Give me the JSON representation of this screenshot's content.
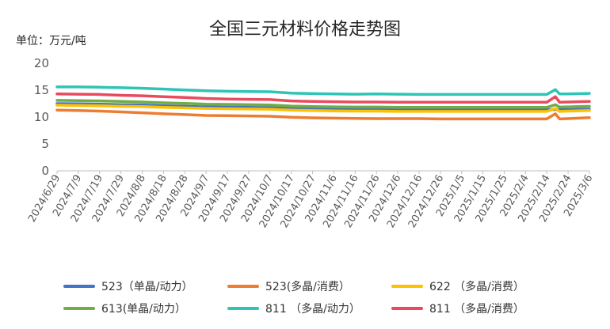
{
  "chart_data": {
    "type": "line",
    "title": "全国三元材料价格走势图",
    "ylabel": "单位：万元/吨",
    "xlabel": "",
    "ylim": [
      0,
      20
    ],
    "yticks": [
      0,
      5,
      10,
      15,
      20
    ],
    "grid": false,
    "legend_position": "bottom",
    "x_tick_labels": [
      "2024/6/29",
      "2024/7/9",
      "2024/7/19",
      "2024/7/29",
      "2024/8/8",
      "2024/8/18",
      "2024/8/28",
      "2024/9/7",
      "2024/9/17",
      "2024/9/27",
      "2024/10/7",
      "2024/10/17",
      "2024/10/27",
      "2024/11/6",
      "2024/11/16",
      "2024/11/26",
      "2024/12/6",
      "2024/12/16",
      "2024/12/26",
      "2025/1/5",
      "2025/1/15",
      "2025/1/25",
      "2025/2/4",
      "2025/2/14",
      "2025/2/24",
      "2025/3/6"
    ],
    "x": [
      "2024/6/29",
      "2024/7/9",
      "2024/7/19",
      "2024/7/29",
      "2024/8/8",
      "2024/8/18",
      "2024/8/28",
      "2024/9/7",
      "2024/9/17",
      "2024/9/27",
      "2024/10/7",
      "2024/10/17",
      "2024/10/27",
      "2024/11/6",
      "2024/11/16",
      "2024/11/26",
      "2024/12/6",
      "2024/12/16",
      "2024/12/26",
      "2025/1/5",
      "2025/1/15",
      "2025/1/25",
      "2025/2/4",
      "2025/2/14",
      "2025/2/18",
      "2025/2/20",
      "2025/2/24",
      "2025/3/6"
    ],
    "series": [
      {
        "name": "523（单晶/动力）",
        "color": "#4472C4",
        "values": [
          12.5,
          12.45,
          12.4,
          12.3,
          12.25,
          12.1,
          12.0,
          11.9,
          11.85,
          11.8,
          11.75,
          11.6,
          11.5,
          11.45,
          11.4,
          11.4,
          11.35,
          11.35,
          11.35,
          11.35,
          11.35,
          11.35,
          11.35,
          11.35,
          11.4,
          11.4,
          11.4,
          11.45
        ]
      },
      {
        "name": "523(多晶/消费）",
        "color": "#ED7D31",
        "values": [
          11.3,
          11.2,
          11.1,
          10.95,
          10.8,
          10.6,
          10.45,
          10.3,
          10.25,
          10.2,
          10.15,
          9.95,
          9.85,
          9.8,
          9.75,
          9.7,
          9.7,
          9.7,
          9.65,
          9.65,
          9.65,
          9.65,
          9.65,
          9.65,
          10.6,
          9.65,
          9.7,
          9.9
        ]
      },
      {
        "name": "622 （多晶/消费）",
        "color": "#FFC000",
        "values": [
          12.2,
          12.15,
          12.1,
          12.0,
          11.95,
          11.8,
          11.7,
          11.6,
          11.55,
          11.5,
          11.45,
          11.3,
          11.2,
          11.15,
          11.1,
          11.1,
          11.05,
          11.05,
          11.05,
          11.05,
          11.05,
          11.05,
          11.05,
          11.05,
          11.6,
          11.05,
          11.1,
          11.2
        ]
      },
      {
        "name": "613(单晶/动力）",
        "color": "#70AD47",
        "values": [
          13.1,
          13.05,
          13.0,
          12.9,
          12.8,
          12.65,
          12.55,
          12.4,
          12.35,
          12.3,
          12.25,
          12.05,
          11.95,
          11.9,
          11.85,
          11.85,
          11.8,
          11.8,
          11.8,
          11.8,
          11.8,
          11.8,
          11.8,
          11.8,
          12.3,
          11.85,
          11.9,
          12.0
        ]
      },
      {
        "name": "811 （多晶/动力）",
        "color": "#2EC4B6",
        "values": [
          15.6,
          15.6,
          15.55,
          15.45,
          15.35,
          15.2,
          15.05,
          14.9,
          14.8,
          14.75,
          14.7,
          14.45,
          14.35,
          14.3,
          14.25,
          14.3,
          14.25,
          14.2,
          14.2,
          14.2,
          14.2,
          14.2,
          14.2,
          14.2,
          15.1,
          14.3,
          14.3,
          14.4
        ]
      },
      {
        "name": "811 （多晶/消费）",
        "color": "#E84A5F",
        "values": [
          14.3,
          14.25,
          14.2,
          14.05,
          13.95,
          13.8,
          13.65,
          13.45,
          13.35,
          13.3,
          13.25,
          13.0,
          12.9,
          12.85,
          12.8,
          12.8,
          12.75,
          12.75,
          12.75,
          12.75,
          12.75,
          12.75,
          12.75,
          12.75,
          13.8,
          12.75,
          12.8,
          12.9
        ]
      }
    ]
  },
  "colors": {
    "axis": "#BFBFBF",
    "text": "#595959",
    "title": "#262626"
  }
}
